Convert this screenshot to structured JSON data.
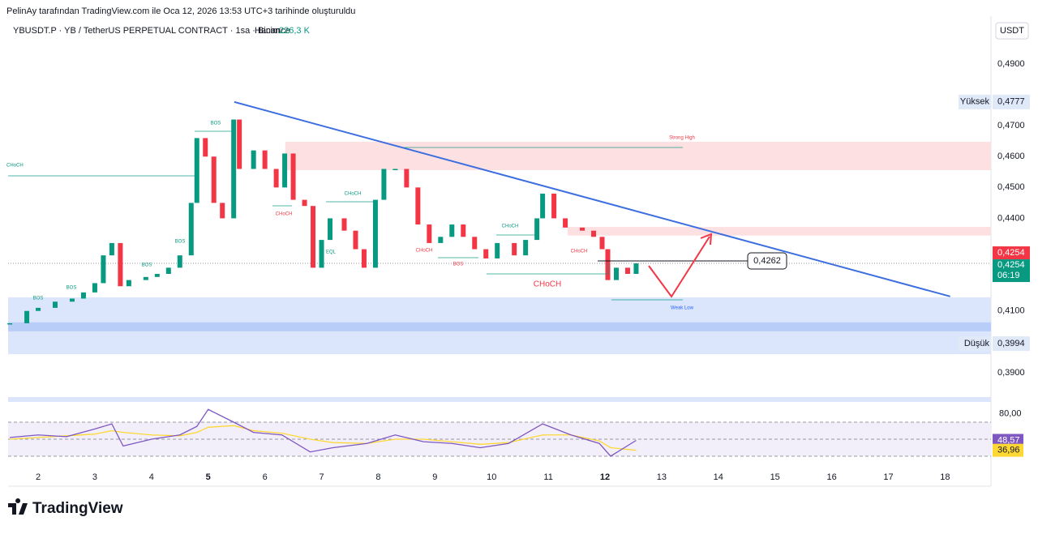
{
  "header": "PelinAy tarafından TradingView.com ile Oca 12, 2026 13:53 UTC+3 tarihinde oluşturuldu",
  "chart_data": {
    "type": "candlestick",
    "title": "YBUSDT.P · YB / TetherUS PERPETUAL CONTRACT · 1sa · Binance",
    "volume_label": "Hacim",
    "volume": {
      "value": 226300,
      "label": "226,3 K"
    },
    "currency": "USDT",
    "x": [
      1.5,
      1.8,
      2.0,
      2.3,
      2.6,
      2.8,
      3.0,
      3.15,
      3.3,
      3.45,
      3.6,
      3.9,
      4.1,
      4.3,
      4.5,
      4.7,
      4.8,
      4.95,
      5.1,
      5.25,
      5.45,
      5.55,
      5.8,
      6.0,
      6.2,
      6.35,
      6.5,
      6.7,
      6.85,
      7.0,
      7.15,
      7.4,
      7.6,
      7.75,
      7.95,
      8.1,
      8.3,
      8.5,
      8.7,
      8.9,
      9.1,
      9.3,
      9.5,
      9.7,
      9.9,
      10.1,
      10.4,
      10.6,
      10.8,
      10.9,
      11.1,
      11.3,
      11.6,
      11.8,
      11.95,
      12.05,
      12.2,
      12.4,
      12.55
    ],
    "values": [
      0.406,
      0.41,
      0.411,
      0.413,
      0.414,
      0.416,
      0.419,
      0.428,
      0.432,
      0.418,
      0.42,
      0.421,
      0.422,
      0.424,
      0.428,
      0.445,
      0.466,
      0.46,
      0.445,
      0.44,
      0.472,
      0.456,
      0.462,
      0.456,
      0.45,
      0.461,
      0.446,
      0.444,
      0.424,
      0.433,
      0.44,
      0.436,
      0.43,
      0.424,
      0.446,
      0.456,
      0.456,
      0.45,
      0.438,
      0.432,
      0.434,
      0.438,
      0.434,
      0.43,
      0.427,
      0.432,
      0.428,
      0.433,
      0.44,
      0.448,
      0.44,
      0.437,
      0.436,
      0.434,
      0.43,
      0.42,
      0.424,
      0.422,
      0.4254
    ],
    "up_color": "#089981",
    "down_color": "#f23645",
    "xlim": [
      1.47,
      18.81
    ],
    "xticks": [
      2,
      3,
      4,
      5,
      6,
      7,
      8,
      9,
      10,
      11,
      12,
      13,
      14,
      15,
      16,
      17,
      18
    ],
    "x_bold": [
      5,
      12
    ],
    "ylim": [
      0.3821,
      0.4976
    ],
    "yticks": [
      {
        "value": 0.49,
        "label": "0,4900"
      },
      {
        "value": 0.47,
        "label": "0,4700"
      },
      {
        "value": 0.46,
        "label": "0,4600"
      },
      {
        "value": 0.45,
        "label": "0,4500"
      },
      {
        "value": 0.44,
        "label": "0,4400"
      },
      {
        "value": 0.41,
        "label": "0,4100"
      },
      {
        "value": 0.39,
        "label": "0,3900"
      }
    ],
    "high": {
      "name": "Yüksek",
      "value": 0.4777,
      "label": "0,4777"
    },
    "low": {
      "name": "Düşük",
      "value": 0.3994,
      "label": "0,3994"
    },
    "last": {
      "value": 0.4254,
      "label": "0,4254",
      "countdown": "06:19"
    },
    "level": {
      "value": 0.4262,
      "label": "0,4262"
    },
    "trendline": {
      "x": [
        5.46,
        18.09
      ],
      "y": [
        0.4777,
        0.4147
      ],
      "color": "#3d6ee0"
    },
    "zones": [
      {
        "from": 0.4556,
        "to": 0.4648,
        "x_from": 6.36,
        "color": "#fde0e2"
      },
      {
        "from": 0.4344,
        "to": 0.4372,
        "x_from": 11.34,
        "color": "#fde0e2"
      },
      {
        "from": 0.396,
        "to": 0.4144,
        "x_from": 1.47,
        "color": "#dbe6fd"
      },
      {
        "from": 0.4034,
        "to": 0.4063,
        "x_from": 1.47,
        "color": "#b8cdf8"
      }
    ],
    "annotations": [
      {
        "text": "CHoCH"
      },
      {
        "text": "BOS"
      },
      {
        "text": "BOS"
      },
      {
        "text": "BOS"
      },
      {
        "text": "BOS"
      },
      {
        "text": "BOS"
      },
      {
        "text": "CHoCH"
      },
      {
        "text": "CHoCH"
      },
      {
        "text": "EQL"
      },
      {
        "text": "CHoCH"
      },
      {
        "text": "BOS"
      },
      {
        "text": "CHoCH"
      },
      {
        "text": "CHoCH"
      },
      {
        "text": "CHoCH"
      },
      {
        "text": "Strong High"
      },
      {
        "text": "Weak Low"
      }
    ],
    "rsi": {
      "ylim": [
        17.6,
        90
      ],
      "yticks": [
        {
          "value": 80,
          "label": "80,00"
        }
      ],
      "bands": [
        30,
        50,
        70
      ],
      "x": [
        1.5,
        2.0,
        2.5,
        3.0,
        3.3,
        3.5,
        4.0,
        4.5,
        4.8,
        5.0,
        5.45,
        5.8,
        6.3,
        6.8,
        7.2,
        7.8,
        8.3,
        8.8,
        9.3,
        9.8,
        10.3,
        10.9,
        11.4,
        11.9,
        12.1,
        12.55
      ],
      "values": [
        52,
        55,
        53,
        62,
        68,
        42,
        50,
        55,
        65,
        85,
        70,
        58,
        55,
        35,
        40,
        45,
        55,
        47,
        45,
        40,
        45,
        68,
        55,
        45,
        30,
        48.57
      ],
      "ma_values": [
        50,
        52,
        54,
        56,
        60,
        58,
        55,
        54,
        58,
        64,
        66,
        60,
        57,
        50,
        46,
        45,
        50,
        50,
        47,
        44,
        46,
        55,
        55,
        48,
        40,
        36.96
      ],
      "color": "#7e57c2",
      "ma_color": "#fdd835",
      "last": {
        "value": 48.57,
        "label": "48,57"
      },
      "ma_last": {
        "value": 36.96,
        "label": "36,96"
      }
    }
  },
  "footer": "TradingView"
}
